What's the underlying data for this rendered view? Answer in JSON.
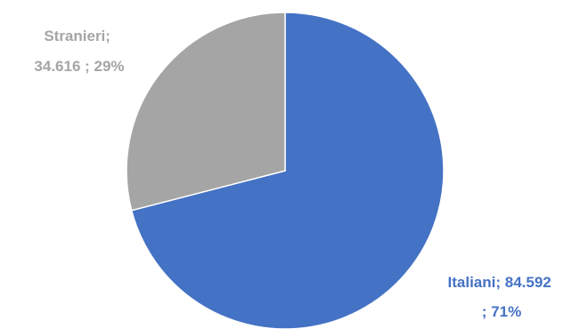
{
  "chart_data": {
    "type": "pie",
    "title": "",
    "slices": [
      {
        "name": "Italiani",
        "value": 84592,
        "value_label": "84.592",
        "percent": 71,
        "percent_label": "71%",
        "color": "#4472C4",
        "label_color": "#4472C4",
        "label_lines": [
          "Italiani;  84.592",
          "; 71%"
        ]
      },
      {
        "name": "Stranieri",
        "value": 34616,
        "value_label": "34.616",
        "percent": 29,
        "percent_label": "29%",
        "color": "#A5A5A5",
        "label_color": "#A5A5A5",
        "label_lines": [
          "Stranieri;",
          "34.616 ; 29%"
        ]
      }
    ],
    "start_angle_deg": 0,
    "direction": "clockwise",
    "legend": "none"
  }
}
